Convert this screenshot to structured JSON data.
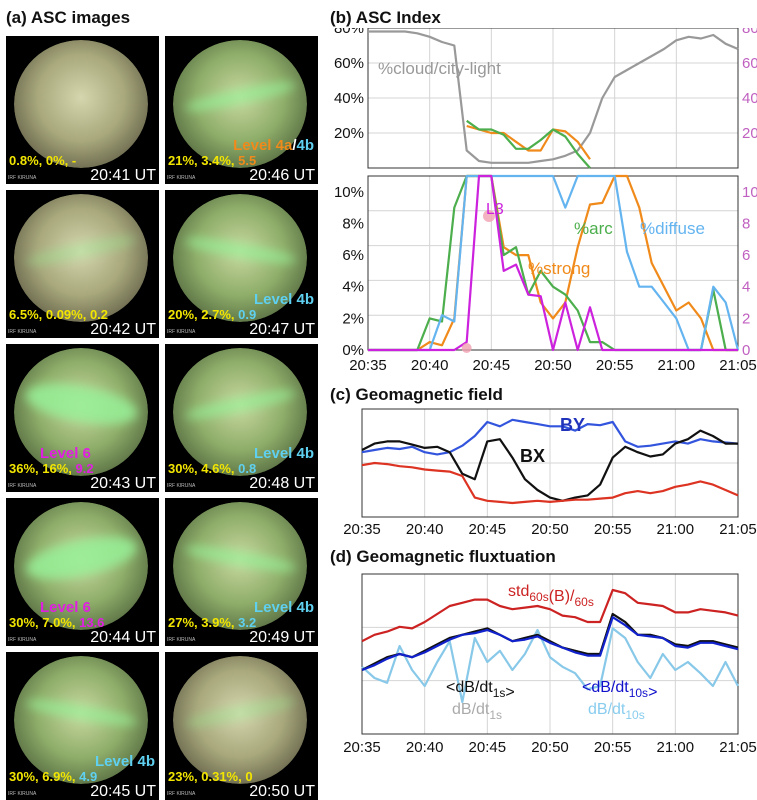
{
  "panels": {
    "a_title": "(a) ASC images",
    "b_title": "(b) ASC Index",
    "c_title": "(c) Geomagnetic field",
    "d_title": "(d) Geomagnetic fluxtuation"
  },
  "asc_images": [
    {
      "time": "20:41 UT",
      "stats": [
        "0.8%, ",
        "0%, ",
        "-"
      ],
      "stat_colors": [
        "#f2e600",
        "#f2e600",
        "#f2e600"
      ],
      "level": [
        "",
        ""
      ],
      "level_colors": [
        "",
        ""
      ],
      "level_sep": "",
      "station": "IRF KIRUNA",
      "tone": "hazy",
      "band": "none"
    },
    {
      "time": "20:42 UT",
      "stats": [
        "6.5%, ",
        "0.09%, ",
        "0.2"
      ],
      "stat_colors": [
        "#f2e600",
        "#f2e600",
        "#f2e600"
      ],
      "level": [
        "",
        ""
      ],
      "level_colors": [
        "",
        ""
      ],
      "level_sep": "",
      "station": "IRF KIRUNA",
      "tone": "hazy",
      "band": "faint"
    },
    {
      "time": "20:43 UT",
      "stats": [
        "36%, ",
        "16%, ",
        "9.2"
      ],
      "stat_colors": [
        "#f2e600",
        "#f2e600",
        "#e020e0"
      ],
      "level": [
        "Level 6",
        ""
      ],
      "level_colors": [
        "#e020e0",
        ""
      ],
      "level_sep": "",
      "station": "IRF KIRUNA",
      "tone": "green",
      "band": "strong"
    },
    {
      "time": "20:44 UT",
      "stats": [
        "30%, ",
        "7.0%, ",
        "13.6"
      ],
      "stat_colors": [
        "#f2e600",
        "#f2e600",
        "#e020e0"
      ],
      "level": [
        "Level 6",
        ""
      ],
      "level_colors": [
        "#e020e0",
        ""
      ],
      "level_sep": "",
      "station": "IRF KIRUNA",
      "tone": "green",
      "band": "strong"
    },
    {
      "time": "20:45 UT",
      "stats": [
        "30%, ",
        "6.9%, ",
        "4.9"
      ],
      "stat_colors": [
        "#f2e600",
        "#f2e600",
        "#5fd0f0"
      ],
      "level": [
        "Level 4b",
        ""
      ],
      "level_colors": [
        "#5fd0f0",
        ""
      ],
      "level_sep": "",
      "station": "IRF KIRUNA",
      "tone": "green",
      "band": "arc"
    },
    {
      "time": "20:46 UT",
      "stats": [
        "21%, ",
        "3.4%, ",
        "5.5"
      ],
      "stat_colors": [
        "#f2e600",
        "#f2e600",
        "#f08a1a"
      ],
      "level": [
        "Level 4a",
        "4b"
      ],
      "level_colors": [
        "#f08a1a",
        "#5fd0f0"
      ],
      "level_sep": "/",
      "station": "IRF KIRUNA",
      "tone": "green",
      "band": "arc"
    },
    {
      "time": "20:47 UT",
      "stats": [
        "20%, ",
        "2.7%, ",
        "0.9"
      ],
      "stat_colors": [
        "#f2e600",
        "#f2e600",
        "#5fd0f0"
      ],
      "level": [
        "Level 4b",
        ""
      ],
      "level_colors": [
        "#5fd0f0",
        ""
      ],
      "level_sep": "",
      "station": "IRF KIRUNA",
      "tone": "green",
      "band": "arc"
    },
    {
      "time": "20:48 UT",
      "stats": [
        "30%, ",
        "4.6%, ",
        "0.8"
      ],
      "stat_colors": [
        "#f2e600",
        "#f2e600",
        "#5fd0f0"
      ],
      "level": [
        "Level 4b",
        ""
      ],
      "level_colors": [
        "#5fd0f0",
        ""
      ],
      "level_sep": "",
      "station": "IRF KIRUNA",
      "tone": "green",
      "band": "arc"
    },
    {
      "time": "20:49 UT",
      "stats": [
        "27%, ",
        "3.9%, ",
        "3.2"
      ],
      "stat_colors": [
        "#f2e600",
        "#f2e600",
        "#5fd0f0"
      ],
      "level": [
        "Level 4b",
        ""
      ],
      "level_colors": [
        "#5fd0f0",
        ""
      ],
      "level_sep": "",
      "station": "IRF KIRUNA",
      "tone": "green",
      "band": "arc"
    },
    {
      "time": "20:50 UT",
      "stats": [
        "23%, ",
        "0.31%, ",
        "0"
      ],
      "stat_colors": [
        "#f2e600",
        "#f2e600",
        "#f2e600"
      ],
      "level": [
        "",
        ""
      ],
      "level_colors": [
        "",
        ""
      ],
      "level_sep": "",
      "station": "IRF KIRUNA",
      "tone": "hazy",
      "band": "faint"
    }
  ],
  "chart_data": [
    {
      "id": "b_top",
      "type": "line",
      "x": [
        "20:35",
        "20:36",
        "20:37",
        "20:38",
        "20:39",
        "20:40",
        "20:41",
        "20:42",
        "20:43",
        "20:44",
        "20:45",
        "20:46",
        "20:47",
        "20:48",
        "20:49",
        "20:50",
        "20:51",
        "20:52",
        "20:53",
        "20:54",
        "20:55",
        "20:56",
        "20:57",
        "20:58",
        "20:59",
        "21:00",
        "21:01",
        "21:02",
        "21:03",
        "21:04",
        "21:05"
      ],
      "xlim": [
        0,
        30
      ],
      "ylim": [
        10,
        90
      ],
      "yticks_left": [
        "20%",
        "40%",
        "60%",
        "80%"
      ],
      "yticks_right": [
        "20",
        "40",
        "60",
        "80"
      ],
      "yticks_right_color": "#c060c0",
      "annotations": [
        "%cloud/city-light"
      ],
      "series": [
        {
          "values": [
            88,
            88,
            88,
            88,
            87,
            85,
            82,
            80,
            20,
            14,
            13,
            13,
            13,
            13,
            14,
            15,
            17,
            20,
            30,
            50,
            62,
            66,
            70,
            74,
            78,
            83,
            85,
            84,
            86,
            81,
            78
          ],
          "color": "#999999"
        },
        {
          "values": [
            null,
            null,
            null,
            null,
            null,
            null,
            null,
            null,
            34,
            32,
            30,
            30,
            25,
            20,
            20,
            32,
            31,
            25,
            15,
            null,
            null,
            null,
            null,
            null,
            null,
            null,
            null,
            null,
            null,
            null,
            null
          ],
          "color": "#f08a1a"
        },
        {
          "values": [
            null,
            null,
            null,
            null,
            null,
            null,
            null,
            null,
            37,
            32,
            32,
            29,
            21,
            21,
            26,
            32,
            28,
            18,
            10,
            null,
            null,
            null,
            null,
            null,
            null,
            null,
            null,
            null,
            null,
            null,
            null
          ],
          "color": "#4cae4c"
        }
      ]
    },
    {
      "id": "b_bottom",
      "type": "line",
      "x": [
        "20:35",
        "20:36",
        "20:37",
        "20:38",
        "20:39",
        "20:40",
        "20:41",
        "20:42",
        "20:43",
        "20:44",
        "20:45",
        "20:46",
        "20:47",
        "20:48",
        "20:49",
        "20:50",
        "20:51",
        "20:52",
        "20:53",
        "20:54",
        "20:55",
        "20:56",
        "20:57",
        "20:58",
        "20:59",
        "21:00",
        "21:01",
        "21:02",
        "21:03",
        "21:04",
        "21:05"
      ],
      "xticks": [
        "20:35",
        "20:40",
        "20:45",
        "20:50",
        "20:55",
        "21:00",
        "21:05"
      ],
      "xlim": [
        0,
        30
      ],
      "ylim": [
        0,
        11
      ],
      "yticks_left": [
        "0%",
        "2%",
        "4%",
        "6%",
        "8%",
        "10%"
      ],
      "yticks_right": [
        "0",
        "2",
        "4",
        "6",
        "8",
        "10"
      ],
      "yticks_right_color": "#c060c0",
      "annotations": [
        "L3",
        "%strong",
        "%arc",
        "%diffuse"
      ],
      "series": [
        {
          "values": [
            0,
            0,
            0,
            0,
            0,
            0.5,
            0.3,
            2,
            11,
            11,
            11,
            6.5,
            6,
            6,
            3,
            2,
            3,
            6.5,
            9.2,
            9.3,
            11,
            11,
            9,
            5.5,
            4,
            2.5,
            3,
            2,
            0,
            0,
            0
          ],
          "color": "#f08a1a"
        },
        {
          "values": [
            0,
            0,
            0,
            0,
            0,
            2,
            1.8,
            9,
            11,
            11,
            11,
            6,
            6.5,
            3.5,
            5,
            4,
            3.5,
            2.5,
            0.5,
            0.5,
            0,
            0,
            0,
            0,
            0,
            0,
            0,
            0,
            3.8,
            0,
            0
          ],
          "color": "#4cae4c"
        },
        {
          "values": [
            0,
            0,
            0,
            0,
            0,
            0,
            2.2,
            1.8,
            11,
            11,
            11,
            11,
            11,
            11,
            11,
            11,
            9,
            11,
            11,
            11,
            11,
            6.2,
            4,
            4,
            3,
            2,
            0,
            0,
            4,
            3,
            0
          ],
          "color": "#64b4f0"
        },
        {
          "values": [
            0,
            0,
            0,
            0,
            0,
            0,
            0,
            0,
            0.5,
            11,
            11,
            5,
            5.4,
            3.5,
            3.4,
            0,
            3,
            0,
            2.7,
            0,
            0,
            0,
            0,
            0,
            0,
            0,
            0,
            0,
            0,
            0,
            0
          ],
          "color": "#cc22dd"
        }
      ]
    },
    {
      "id": "c",
      "type": "line",
      "x": [
        "20:35",
        "20:36",
        "20:37",
        "20:38",
        "20:39",
        "20:40",
        "20:41",
        "20:42",
        "20:43",
        "20:44",
        "20:45",
        "20:46",
        "20:47",
        "20:48",
        "20:49",
        "20:50",
        "20:51",
        "20:52",
        "20:53",
        "20:54",
        "20:55",
        "20:56",
        "20:57",
        "20:58",
        "20:59",
        "21:00",
        "21:01",
        "21:02",
        "21:03",
        "21:04",
        "21:05"
      ],
      "xticks": [
        "20:35",
        "20:40",
        "20:45",
        "20:50",
        "20:55",
        "21:00",
        "21:05"
      ],
      "xlim": [
        0,
        30
      ],
      "ylim": [
        0,
        100
      ],
      "grid": true,
      "annotations": [
        "BY",
        "BX"
      ],
      "series": [
        {
          "name": "BY",
          "values": [
            60,
            62,
            64,
            63,
            65,
            60,
            58,
            60,
            66,
            75,
            88,
            84,
            90,
            88,
            86,
            84,
            84,
            80,
            86,
            85,
            88,
            70,
            65,
            66,
            68,
            70,
            68,
            72,
            70,
            69,
            68
          ],
          "color": "#3355dd"
        },
        {
          "name": "BX",
          "values": [
            62,
            68,
            70,
            70,
            67,
            64,
            65,
            60,
            40,
            35,
            70,
            72,
            55,
            35,
            25,
            18,
            15,
            18,
            20,
            30,
            55,
            65,
            60,
            56,
            58,
            68,
            72,
            80,
            75,
            68,
            68
          ],
          "color": "#111111"
        },
        {
          "values": [
            48,
            50,
            49,
            47,
            46,
            44,
            43,
            42,
            38,
            18,
            15,
            14,
            13,
            14,
            15,
            14,
            15,
            16,
            16,
            17,
            18,
            22,
            24,
            22,
            24,
            28,
            30,
            33,
            30,
            25,
            20
          ],
          "color": "#dd3322"
        }
      ]
    },
    {
      "id": "d",
      "type": "line",
      "x": [
        "20:35",
        "20:36",
        "20:37",
        "20:38",
        "20:39",
        "20:40",
        "20:41",
        "20:42",
        "20:43",
        "20:44",
        "20:45",
        "20:46",
        "20:47",
        "20:48",
        "20:49",
        "20:50",
        "20:51",
        "20:52",
        "20:53",
        "20:54",
        "20:55",
        "20:56",
        "20:57",
        "20:58",
        "20:59",
        "21:00",
        "21:01",
        "21:02",
        "21:03",
        "21:04",
        "21:05"
      ],
      "xticks": [
        "20:35",
        "20:40",
        "20:45",
        "20:50",
        "20:55",
        "21:00",
        "21:05"
      ],
      "xlim": [
        0,
        30
      ],
      "ylim": [
        0,
        100
      ],
      "grid": true,
      "annotations": [
        "std",
        "60s",
        "(B)/",
        "60s",
        "<dB/dt",
        "1s",
        ">",
        "dB/dt",
        "1s",
        "<dB/dt",
        "10s",
        ">",
        "dB/dt",
        "10s"
      ],
      "annotation_colors": {
        "red": "#cc2222",
        "black": "#111111",
        "gray": "#aaaaaa",
        "blue": "#1111cc",
        "lightblue": "#88ccee"
      },
      "series": [
        {
          "values": [
            42,
            35,
            32,
            55,
            40,
            30,
            45,
            58,
            20,
            60,
            45,
            52,
            40,
            50,
            65,
            48,
            42,
            38,
            28,
            30,
            66,
            60,
            45,
            35,
            50,
            40,
            45,
            38,
            30,
            45,
            30
          ],
          "color": "#88c8e8"
        },
        {
          "values": [
            40,
            44,
            48,
            50,
            48,
            52,
            56,
            60,
            62,
            64,
            66,
            62,
            58,
            60,
            62,
            58,
            54,
            52,
            50,
            50,
            75,
            70,
            62,
            62,
            60,
            56,
            55,
            58,
            58,
            56,
            54
          ],
          "color": "#aaaaaa"
        },
        {
          "values": [
            40,
            44,
            48,
            50,
            48,
            52,
            56,
            60,
            62,
            64,
            66,
            62,
            58,
            60,
            62,
            58,
            54,
            52,
            50,
            50,
            75,
            70,
            62,
            62,
            60,
            56,
            55,
            58,
            58,
            56,
            54
          ],
          "color": "#111111"
        },
        {
          "values": [
            40,
            43,
            47,
            50,
            48,
            51,
            55,
            59,
            62,
            63,
            65,
            62,
            58,
            59,
            61,
            57,
            54,
            51,
            49,
            49,
            73,
            68,
            62,
            61,
            60,
            55,
            54,
            57,
            57,
            55,
            53
          ],
          "color": "#1122cc"
        },
        {
          "values": [
            58,
            62,
            64,
            67,
            66,
            70,
            75,
            80,
            82,
            84,
            84,
            80,
            78,
            79,
            80,
            78,
            74,
            73,
            70,
            70,
            90,
            88,
            82,
            81,
            80,
            76,
            76,
            78,
            77,
            76,
            74
          ],
          "color": "#cc2222"
        }
      ]
    }
  ]
}
